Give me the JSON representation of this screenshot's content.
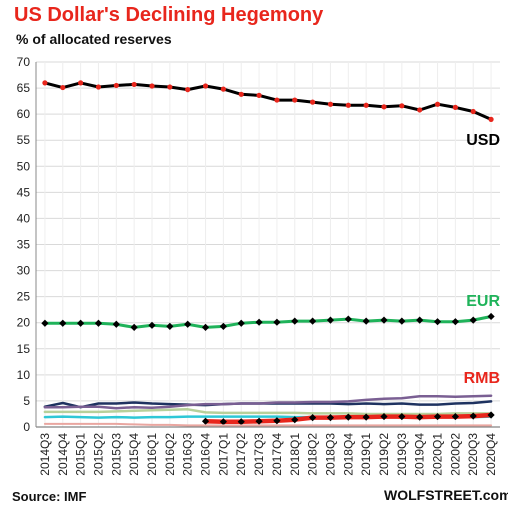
{
  "header": {
    "title": "US Dollar's  Declining Hegemony",
    "subtitle": "% of allocated reserves"
  },
  "footer": {
    "source": "Source: IMF",
    "credit": "WOLFSTREET.com"
  },
  "chart_data": {
    "type": "line",
    "title": "US Dollar's  Declining Hegemony",
    "subtitle": "% of allocated reserves",
    "xlabel": "",
    "ylabel": "",
    "ylim": [
      0,
      70
    ],
    "yticks": [
      0,
      5,
      10,
      15,
      20,
      25,
      30,
      35,
      40,
      45,
      50,
      55,
      60,
      65,
      70
    ],
    "grid": true,
    "legend": "direct labels at right end of lines",
    "categories": [
      "2014Q3",
      "2014Q4",
      "2015Q1",
      "2015Q2",
      "2015Q3",
      "2015Q4",
      "2016Q1",
      "2016Q2",
      "2016Q3",
      "2016Q4",
      "2017Q1",
      "2017Q2",
      "2017Q3",
      "2017Q4",
      "2018Q1",
      "2018Q2",
      "2018Q3",
      "2018Q4",
      "2019Q1",
      "2019Q2",
      "2019Q3",
      "2019Q4",
      "2020Q1",
      "2020Q2",
      "2020Q3",
      "2020Q4"
    ],
    "series": [
      {
        "name": "USD",
        "label": "USD",
        "color": "#000000",
        "label_color": "#000000",
        "marker": "red-dot",
        "line_width": 3,
        "values": [
          66.0,
          65.1,
          66.0,
          65.2,
          65.5,
          65.7,
          65.4,
          65.2,
          64.7,
          65.4,
          64.8,
          63.8,
          63.6,
          62.7,
          62.7,
          62.3,
          61.9,
          61.7,
          61.7,
          61.4,
          61.6,
          60.8,
          61.9,
          61.3,
          60.5,
          59.0
        ]
      },
      {
        "name": "EUR",
        "label": "EUR",
        "color": "#1fb35a",
        "label_color": "#1fb35a",
        "marker": "black-diamond",
        "line_width": 3,
        "values": [
          19.9,
          19.9,
          19.9,
          19.9,
          19.7,
          19.1,
          19.5,
          19.3,
          19.7,
          19.1,
          19.3,
          19.9,
          20.1,
          20.1,
          20.3,
          20.3,
          20.5,
          20.7,
          20.3,
          20.5,
          20.3,
          20.5,
          20.2,
          20.2,
          20.5,
          21.2
        ]
      },
      {
        "color": "#1e3260",
        "marker": "none",
        "line_width": 2.5,
        "values": [
          3.9,
          4.6,
          3.8,
          4.5,
          4.5,
          4.7,
          4.5,
          4.4,
          4.3,
          4.2,
          4.4,
          4.5,
          4.5,
          4.5,
          4.5,
          4.5,
          4.5,
          4.4,
          4.5,
          4.4,
          4.5,
          4.3,
          4.3,
          4.5,
          4.6,
          4.9
        ]
      },
      {
        "color": "#7a5f93",
        "marker": "none",
        "line_width": 2.5,
        "values": [
          3.8,
          3.8,
          3.9,
          3.9,
          3.6,
          3.8,
          3.7,
          3.9,
          4.2,
          4.4,
          4.4,
          4.5,
          4.5,
          4.7,
          4.7,
          4.8,
          4.8,
          4.9,
          5.2,
          5.4,
          5.5,
          5.9,
          5.9,
          5.8,
          5.9,
          6.0
        ]
      },
      {
        "color": "#b7d09a",
        "marker": "none",
        "line_width": 2.5,
        "values": [
          2.9,
          2.9,
          2.9,
          2.9,
          3.0,
          3.1,
          3.2,
          3.3,
          3.4,
          2.8,
          2.7,
          2.7,
          2.7,
          2.7,
          2.7,
          2.6,
          2.6,
          2.6,
          2.5,
          2.5,
          2.5,
          2.5,
          2.5,
          2.6,
          2.6,
          2.6
        ]
      },
      {
        "color": "#2ec7d6",
        "marker": "none",
        "line_width": 2.5,
        "values": [
          1.9,
          2.0,
          1.9,
          1.8,
          1.9,
          1.8,
          1.9,
          1.9,
          2.0,
          2.0,
          2.0,
          2.0,
          2.0,
          2.0,
          1.9,
          1.9,
          1.9,
          1.9,
          1.9,
          1.9,
          1.9,
          1.9,
          1.9,
          1.9,
          1.9,
          2.0
        ]
      },
      {
        "name": "RMB",
        "label": "RMB",
        "color": "#e8261c",
        "label_color": "#e8261c",
        "marker": "black-diamond",
        "line_width": 4.5,
        "values": [
          null,
          null,
          null,
          null,
          null,
          null,
          null,
          null,
          null,
          1.1,
          1.0,
          1.0,
          1.1,
          1.2,
          1.4,
          1.8,
          1.8,
          1.9,
          1.9,
          2.0,
          2.0,
          1.9,
          2.0,
          2.0,
          2.1,
          2.3
        ]
      },
      {
        "color": "#e9a6a0",
        "marker": "none",
        "line_width": 2,
        "values": [
          0.6,
          0.6,
          0.6,
          0.6,
          0.6,
          0.5,
          0.4,
          0.4,
          0.3,
          0.3,
          0.3,
          0.3,
          0.3,
          0.3,
          0.3,
          0.3,
          0.3,
          0.3,
          0.3,
          0.3,
          0.3,
          0.3,
          0.3,
          0.3,
          0.3,
          0.3
        ]
      }
    ]
  }
}
